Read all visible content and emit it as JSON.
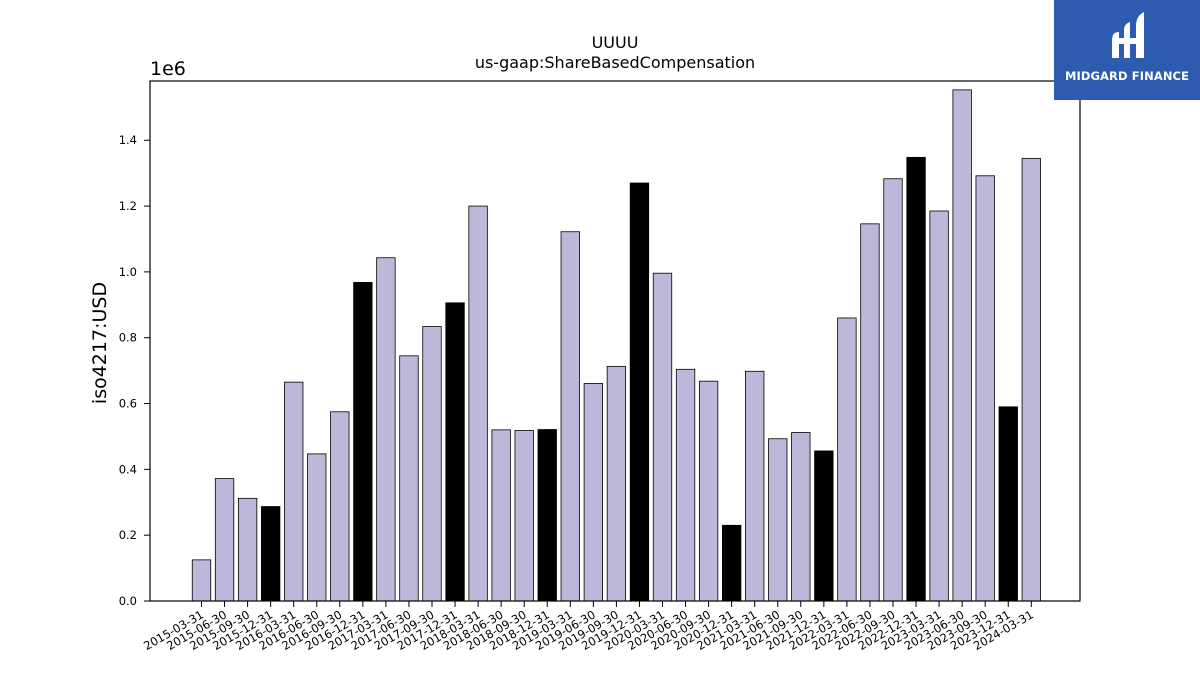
{
  "chart_data": {
    "type": "bar",
    "title": "UUUU",
    "subtitle": "us-gaap:ShareBasedCompensation",
    "ylabel": "iso4217:USD",
    "xlabel": "",
    "y_offset_label": "1e6",
    "ylim": [
      0,
      1.58
    ],
    "yticks": [
      "0.0",
      "0.2",
      "0.4",
      "0.6",
      "0.8",
      "1.0",
      "1.2",
      "1.4"
    ],
    "grid": false,
    "categories": [
      "2015-03-31",
      "2015-06-30",
      "2015-09-30",
      "2015-12-31",
      "2016-03-31",
      "2016-06-30",
      "2016-09-30",
      "2016-12-31",
      "2017-03-31",
      "2017-06-30",
      "2017-09-30",
      "2017-12-31",
      "2018-03-31",
      "2018-06-30",
      "2018-09-30",
      "2018-12-31",
      "2019-03-31",
      "2019-06-30",
      "2019-09-30",
      "2019-12-31",
      "2020-03-31",
      "2020-06-30",
      "2020-09-30",
      "2020-12-31",
      "2021-03-31",
      "2021-06-30",
      "2021-09-30",
      "2021-12-31",
      "2022-03-31",
      "2022-06-30",
      "2022-09-30",
      "2022-12-31",
      "2023-03-31",
      "2023-06-30",
      "2023-09-30",
      "2023-12-31",
      "2024-03-31"
    ],
    "values": [
      0.125,
      0.372,
      0.312,
      0.287,
      0.665,
      0.447,
      0.575,
      0.968,
      1.043,
      0.745,
      0.834,
      0.906,
      1.2,
      0.52,
      0.518,
      0.521,
      1.122,
      0.661,
      0.713,
      1.27,
      0.996,
      0.704,
      0.668,
      0.23,
      0.698,
      0.493,
      0.512,
      0.456,
      0.86,
      1.146,
      1.283,
      1.348,
      1.185,
      1.553,
      1.292,
      0.59,
      1.345
    ],
    "highlight": [
      false,
      false,
      false,
      true,
      false,
      false,
      false,
      true,
      false,
      false,
      false,
      true,
      false,
      false,
      false,
      true,
      false,
      false,
      false,
      true,
      false,
      false,
      false,
      true,
      false,
      false,
      false,
      true,
      false,
      false,
      false,
      true,
      false,
      false,
      false,
      true,
      false
    ],
    "colors": {
      "bar": "#bcb8da",
      "highlight": "#000000",
      "edge": "#000000"
    }
  },
  "logo": {
    "text": "MIDGARD FINANCE",
    "background": "#2d5bb0",
    "name": "midgard-finance-logo"
  }
}
